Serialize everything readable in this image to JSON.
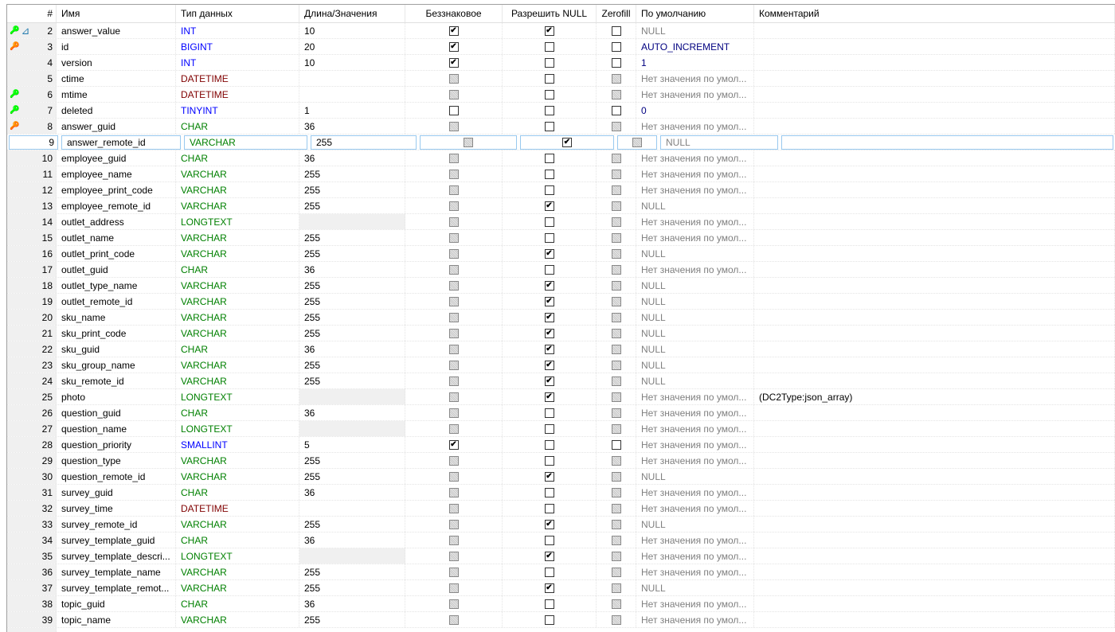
{
  "colors": {
    "int": "#0000ff",
    "date": "#800000",
    "text": "#008000",
    "default_gray": "#808080",
    "auto": "#000080",
    "num_default": "#000080",
    "selection_border": "#99c9ef"
  },
  "headers": [
    "#",
    "Имя",
    "Тип данных",
    "Длина/Значения",
    "Беззнаковое",
    "Разрешить NULL",
    "Zerofill",
    "По умолчанию",
    "Комментарий"
  ],
  "rows": [
    {
      "n": "2",
      "name": "answer_value",
      "type": "INT",
      "kind": "int",
      "len": "10",
      "unsigned": "on",
      "null": "on",
      "zerofill": "off",
      "default": "NULL",
      "dflt_style": "gray",
      "comment": "",
      "icon": "key-green+index-icon"
    },
    {
      "n": "3",
      "name": "id",
      "type": "BIGINT",
      "kind": "int",
      "len": "20",
      "unsigned": "on",
      "null": "off",
      "zerofill": "off",
      "default": "AUTO_INCREMENT",
      "dflt_style": "auto",
      "comment": "",
      "icon": "key-red"
    },
    {
      "n": "4",
      "name": "version",
      "type": "INT",
      "kind": "int",
      "len": "10",
      "unsigned": "on",
      "null": "off",
      "zerofill": "off",
      "default": "1",
      "dflt_style": "num",
      "comment": ""
    },
    {
      "n": "5",
      "name": "ctime",
      "type": "DATETIME",
      "kind": "date",
      "len": "",
      "unsigned": "dis",
      "null": "off",
      "zerofill": "dis",
      "default": "Нет значения по умол...",
      "dflt_style": "gray",
      "comment": ""
    },
    {
      "n": "6",
      "name": "mtime",
      "type": "DATETIME",
      "kind": "date",
      "len": "",
      "unsigned": "dis",
      "null": "off",
      "zerofill": "dis",
      "default": "Нет значения по умол...",
      "dflt_style": "gray",
      "comment": "",
      "icon": "key-green"
    },
    {
      "n": "7",
      "name": "deleted",
      "type": "TINYINT",
      "kind": "int",
      "len": "1",
      "unsigned": "off",
      "null": "off",
      "zerofill": "off",
      "default": "0",
      "dflt_style": "num",
      "comment": "",
      "icon": "key-green"
    },
    {
      "n": "8",
      "name": "answer_guid",
      "type": "CHAR",
      "kind": "text",
      "len": "36",
      "unsigned": "dis",
      "null": "off",
      "zerofill": "dis",
      "default": "Нет значения по умол...",
      "dflt_style": "gray",
      "comment": "",
      "icon": "key-red"
    },
    {
      "n": "9",
      "name": "answer_remote_id",
      "type": "VARCHAR",
      "kind": "text",
      "len": "255",
      "unsigned": "dis",
      "null": "on",
      "zerofill": "dis",
      "default": "NULL",
      "dflt_style": "gray",
      "comment": "",
      "selected": true
    },
    {
      "n": "10",
      "name": "employee_guid",
      "type": "CHAR",
      "kind": "text",
      "len": "36",
      "unsigned": "dis",
      "null": "off",
      "zerofill": "dis",
      "default": "Нет значения по умол...",
      "dflt_style": "gray",
      "comment": ""
    },
    {
      "n": "11",
      "name": "employee_name",
      "type": "VARCHAR",
      "kind": "text",
      "len": "255",
      "unsigned": "dis",
      "null": "off",
      "zerofill": "dis",
      "default": "Нет значения по умол...",
      "dflt_style": "gray",
      "comment": ""
    },
    {
      "n": "12",
      "name": "employee_print_code",
      "type": "VARCHAR",
      "kind": "text",
      "len": "255",
      "unsigned": "dis",
      "null": "off",
      "zerofill": "dis",
      "default": "Нет значения по умол...",
      "dflt_style": "gray",
      "comment": ""
    },
    {
      "n": "13",
      "name": "employee_remote_id",
      "type": "VARCHAR",
      "kind": "text",
      "len": "255",
      "unsigned": "dis",
      "null": "on",
      "zerofill": "dis",
      "default": "NULL",
      "dflt_style": "gray",
      "comment": ""
    },
    {
      "n": "14",
      "name": "outlet_address",
      "type": "LONGTEXT",
      "kind": "text",
      "len": "",
      "len_empty": true,
      "unsigned": "dis",
      "null": "off",
      "zerofill": "dis",
      "default": "Нет значения по умол...",
      "dflt_style": "gray",
      "comment": ""
    },
    {
      "n": "15",
      "name": "outlet_name",
      "type": "VARCHAR",
      "kind": "text",
      "len": "255",
      "unsigned": "dis",
      "null": "off",
      "zerofill": "dis",
      "default": "Нет значения по умол...",
      "dflt_style": "gray",
      "comment": ""
    },
    {
      "n": "16",
      "name": "outlet_print_code",
      "type": "VARCHAR",
      "kind": "text",
      "len": "255",
      "unsigned": "dis",
      "null": "on",
      "zerofill": "dis",
      "default": "NULL",
      "dflt_style": "gray",
      "comment": ""
    },
    {
      "n": "17",
      "name": "outlet_guid",
      "type": "CHAR",
      "kind": "text",
      "len": "36",
      "unsigned": "dis",
      "null": "off",
      "zerofill": "dis",
      "default": "Нет значения по умол...",
      "dflt_style": "gray",
      "comment": ""
    },
    {
      "n": "18",
      "name": "outlet_type_name",
      "type": "VARCHAR",
      "kind": "text",
      "len": "255",
      "unsigned": "dis",
      "null": "on",
      "zerofill": "dis",
      "default": "NULL",
      "dflt_style": "gray",
      "comment": ""
    },
    {
      "n": "19",
      "name": "outlet_remote_id",
      "type": "VARCHAR",
      "kind": "text",
      "len": "255",
      "unsigned": "dis",
      "null": "on",
      "zerofill": "dis",
      "default": "NULL",
      "dflt_style": "gray",
      "comment": ""
    },
    {
      "n": "20",
      "name": "sku_name",
      "type": "VARCHAR",
      "kind": "text",
      "len": "255",
      "unsigned": "dis",
      "null": "on",
      "zerofill": "dis",
      "default": "NULL",
      "dflt_style": "gray",
      "comment": ""
    },
    {
      "n": "21",
      "name": "sku_print_code",
      "type": "VARCHAR",
      "kind": "text",
      "len": "255",
      "unsigned": "dis",
      "null": "on",
      "zerofill": "dis",
      "default": "NULL",
      "dflt_style": "gray",
      "comment": ""
    },
    {
      "n": "22",
      "name": "sku_guid",
      "type": "CHAR",
      "kind": "text",
      "len": "36",
      "unsigned": "dis",
      "null": "on",
      "zerofill": "dis",
      "default": "NULL",
      "dflt_style": "gray",
      "comment": ""
    },
    {
      "n": "23",
      "name": "sku_group_name",
      "type": "VARCHAR",
      "kind": "text",
      "len": "255",
      "unsigned": "dis",
      "null": "on",
      "zerofill": "dis",
      "default": "NULL",
      "dflt_style": "gray",
      "comment": ""
    },
    {
      "n": "24",
      "name": "sku_remote_id",
      "type": "VARCHAR",
      "kind": "text",
      "len": "255",
      "unsigned": "dis",
      "null": "on",
      "zerofill": "dis",
      "default": "NULL",
      "dflt_style": "gray",
      "comment": ""
    },
    {
      "n": "25",
      "name": "photo",
      "type": "LONGTEXT",
      "kind": "text",
      "len": "",
      "len_empty": true,
      "unsigned": "dis",
      "null": "on",
      "zerofill": "dis",
      "default": "Нет значения по умол...",
      "dflt_style": "gray",
      "comment": "(DC2Type:json_array)"
    },
    {
      "n": "26",
      "name": "question_guid",
      "type": "CHAR",
      "kind": "text",
      "len": "36",
      "unsigned": "dis",
      "null": "off",
      "zerofill": "dis",
      "default": "Нет значения по умол...",
      "dflt_style": "gray",
      "comment": ""
    },
    {
      "n": "27",
      "name": "question_name",
      "type": "LONGTEXT",
      "kind": "text",
      "len": "",
      "len_empty": true,
      "unsigned": "dis",
      "null": "off",
      "zerofill": "dis",
      "default": "Нет значения по умол...",
      "dflt_style": "gray",
      "comment": ""
    },
    {
      "n": "28",
      "name": "question_priority",
      "type": "SMALLINT",
      "kind": "int",
      "len": "5",
      "unsigned": "on",
      "null": "off",
      "zerofill": "off",
      "default": "Нет значения по умол...",
      "dflt_style": "gray",
      "comment": ""
    },
    {
      "n": "29",
      "name": "question_type",
      "type": "VARCHAR",
      "kind": "text",
      "len": "255",
      "unsigned": "dis",
      "null": "off",
      "zerofill": "dis",
      "default": "Нет значения по умол...",
      "dflt_style": "gray",
      "comment": ""
    },
    {
      "n": "30",
      "name": "question_remote_id",
      "type": "VARCHAR",
      "kind": "text",
      "len": "255",
      "unsigned": "dis",
      "null": "on",
      "zerofill": "dis",
      "default": "NULL",
      "dflt_style": "gray",
      "comment": ""
    },
    {
      "n": "31",
      "name": "survey_guid",
      "type": "CHAR",
      "kind": "text",
      "len": "36",
      "unsigned": "dis",
      "null": "off",
      "zerofill": "dis",
      "default": "Нет значения по умол...",
      "dflt_style": "gray",
      "comment": ""
    },
    {
      "n": "32",
      "name": "survey_time",
      "type": "DATETIME",
      "kind": "date",
      "len": "",
      "unsigned": "dis",
      "null": "off",
      "zerofill": "dis",
      "default": "Нет значения по умол...",
      "dflt_style": "gray",
      "comment": ""
    },
    {
      "n": "33",
      "name": "survey_remote_id",
      "type": "VARCHAR",
      "kind": "text",
      "len": "255",
      "unsigned": "dis",
      "null": "on",
      "zerofill": "dis",
      "default": "NULL",
      "dflt_style": "gray",
      "comment": ""
    },
    {
      "n": "34",
      "name": "survey_template_guid",
      "type": "CHAR",
      "kind": "text",
      "len": "36",
      "unsigned": "dis",
      "null": "off",
      "zerofill": "dis",
      "default": "Нет значения по умол...",
      "dflt_style": "gray",
      "comment": ""
    },
    {
      "n": "35",
      "name": "survey_template_descri...",
      "type": "LONGTEXT",
      "kind": "text",
      "len": "",
      "len_empty": true,
      "unsigned": "dis",
      "null": "on",
      "zerofill": "dis",
      "default": "Нет значения по умол...",
      "dflt_style": "gray",
      "comment": ""
    },
    {
      "n": "36",
      "name": "survey_template_name",
      "type": "VARCHAR",
      "kind": "text",
      "len": "255",
      "unsigned": "dis",
      "null": "off",
      "zerofill": "dis",
      "default": "Нет значения по умол...",
      "dflt_style": "gray",
      "comment": ""
    },
    {
      "n": "37",
      "name": "survey_template_remot...",
      "type": "VARCHAR",
      "kind": "text",
      "len": "255",
      "unsigned": "dis",
      "null": "on",
      "zerofill": "dis",
      "default": "NULL",
      "dflt_style": "gray",
      "comment": ""
    },
    {
      "n": "38",
      "name": "topic_guid",
      "type": "CHAR",
      "kind": "text",
      "len": "36",
      "unsigned": "dis",
      "null": "off",
      "zerofill": "dis",
      "default": "Нет значения по умол...",
      "dflt_style": "gray",
      "comment": ""
    },
    {
      "n": "39",
      "name": "topic_name",
      "type": "VARCHAR",
      "kind": "text",
      "len": "255",
      "unsigned": "dis",
      "null": "off",
      "zerofill": "dis",
      "default": "Нет значения по умол...",
      "dflt_style": "gray",
      "comment": ""
    }
  ]
}
